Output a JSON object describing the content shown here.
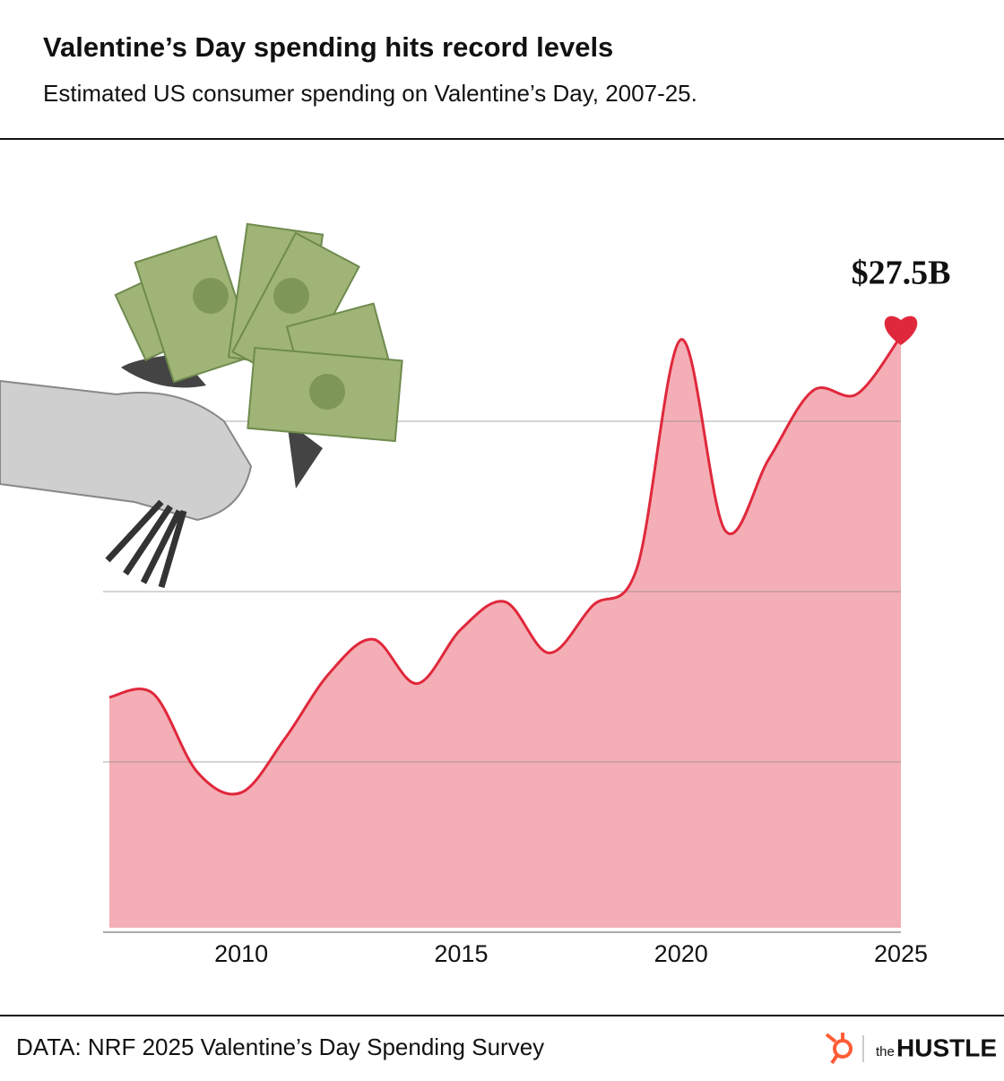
{
  "chart_data": {
    "type": "area",
    "title": "Valentine’s Day spending hits record levels",
    "subtitle": "Estimated US consumer spending on Valentine’s Day, 2007-25.",
    "x": [
      2007,
      2008,
      2009,
      2010,
      2011,
      2012,
      2013,
      2014,
      2015,
      2016,
      2017,
      2018,
      2019,
      2020,
      2021,
      2022,
      2023,
      2024,
      2025
    ],
    "values": [
      16.9,
      17.0,
      14.7,
      14.1,
      15.7,
      17.6,
      18.6,
      17.3,
      18.9,
      19.7,
      18.2,
      19.6,
      20.7,
      27.4,
      21.8,
      23.9,
      25.9,
      25.8,
      27.5
    ],
    "color": "#e0283c",
    "fill_color": "#f4aeb5",
    "xlim": [
      2007,
      2025
    ],
    "xticks": [
      2010,
      2015,
      2020,
      2025
    ],
    "ylim": [
      10,
      30
    ],
    "yticks": [
      15,
      20,
      25
    ],
    "grid": true,
    "annotation": "$27.5B",
    "source": "DATA: NRF 2025 Valentine’s Day Spending Survey",
    "logo_prefix": "the",
    "logo": "HUSTLE"
  }
}
